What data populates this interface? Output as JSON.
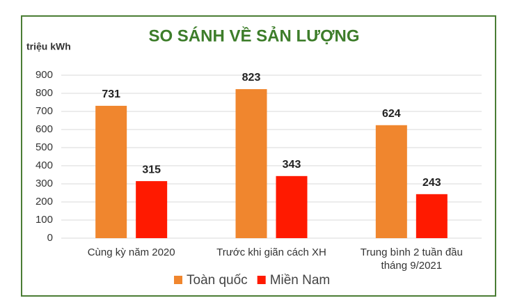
{
  "chart_data": {
    "type": "bar",
    "title": "SO SÁNH VỀ SẢN LƯỢNG",
    "y_label": "triệu kWh",
    "categories": [
      "Cùng kỳ năm 2020",
      "Trước khi giãn cách XH",
      "Trung bình 2 tuần đầu tháng 9/2021"
    ],
    "series": [
      {
        "name": "Toàn quốc",
        "color": "#f0862e",
        "values": [
          731,
          823,
          624
        ]
      },
      {
        "name": "Miền Nam",
        "color": "#ff1a00",
        "values": [
          315,
          343,
          243
        ]
      }
    ],
    "ylim": [
      0,
      900
    ],
    "yticks": [
      0,
      100,
      200,
      300,
      400,
      500,
      600,
      700,
      800,
      900
    ],
    "grid": true,
    "legend": "bottom"
  }
}
